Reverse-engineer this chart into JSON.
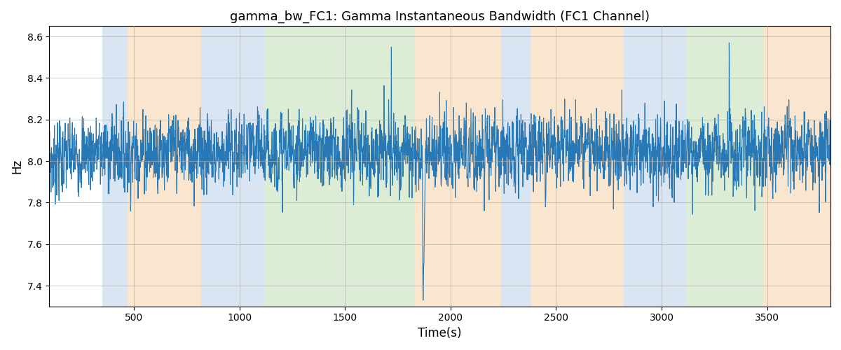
{
  "title": "gamma_bw_FC1: Gamma Instantaneous Bandwidth (FC1 Channel)",
  "xlabel": "Time(s)",
  "ylabel": "Hz",
  "ylim": [
    7.3,
    8.65
  ],
  "xlim": [
    100,
    3800
  ],
  "line_color": "#2878b5",
  "line_width": 0.8,
  "bg_bands": [
    {
      "xmin": 350,
      "xmax": 470,
      "color": "#aec6e8",
      "alpha": 0.45
    },
    {
      "xmin": 470,
      "xmax": 820,
      "color": "#f5c994",
      "alpha": 0.45
    },
    {
      "xmin": 820,
      "xmax": 1120,
      "color": "#aec6e8",
      "alpha": 0.45
    },
    {
      "xmin": 1120,
      "xmax": 1830,
      "color": "#b5d5a0",
      "alpha": 0.45
    },
    {
      "xmin": 1830,
      "xmax": 2240,
      "color": "#f5c994",
      "alpha": 0.45
    },
    {
      "xmin": 2240,
      "xmax": 2380,
      "color": "#aec6e8",
      "alpha": 0.45
    },
    {
      "xmin": 2380,
      "xmax": 2820,
      "color": "#f5c994",
      "alpha": 0.45
    },
    {
      "xmin": 2820,
      "xmax": 3120,
      "color": "#aec6e8",
      "alpha": 0.45
    },
    {
      "xmin": 3120,
      "xmax": 3480,
      "color": "#b5d5a0",
      "alpha": 0.45
    },
    {
      "xmin": 3480,
      "xmax": 3800,
      "color": "#f5c994",
      "alpha": 0.45
    }
  ],
  "grid_color": "#b0b0b0",
  "grid_alpha": 0.7,
  "grid_linewidth": 0.7,
  "tick_fontsize": 10,
  "label_fontsize": 12,
  "title_fontsize": 13
}
